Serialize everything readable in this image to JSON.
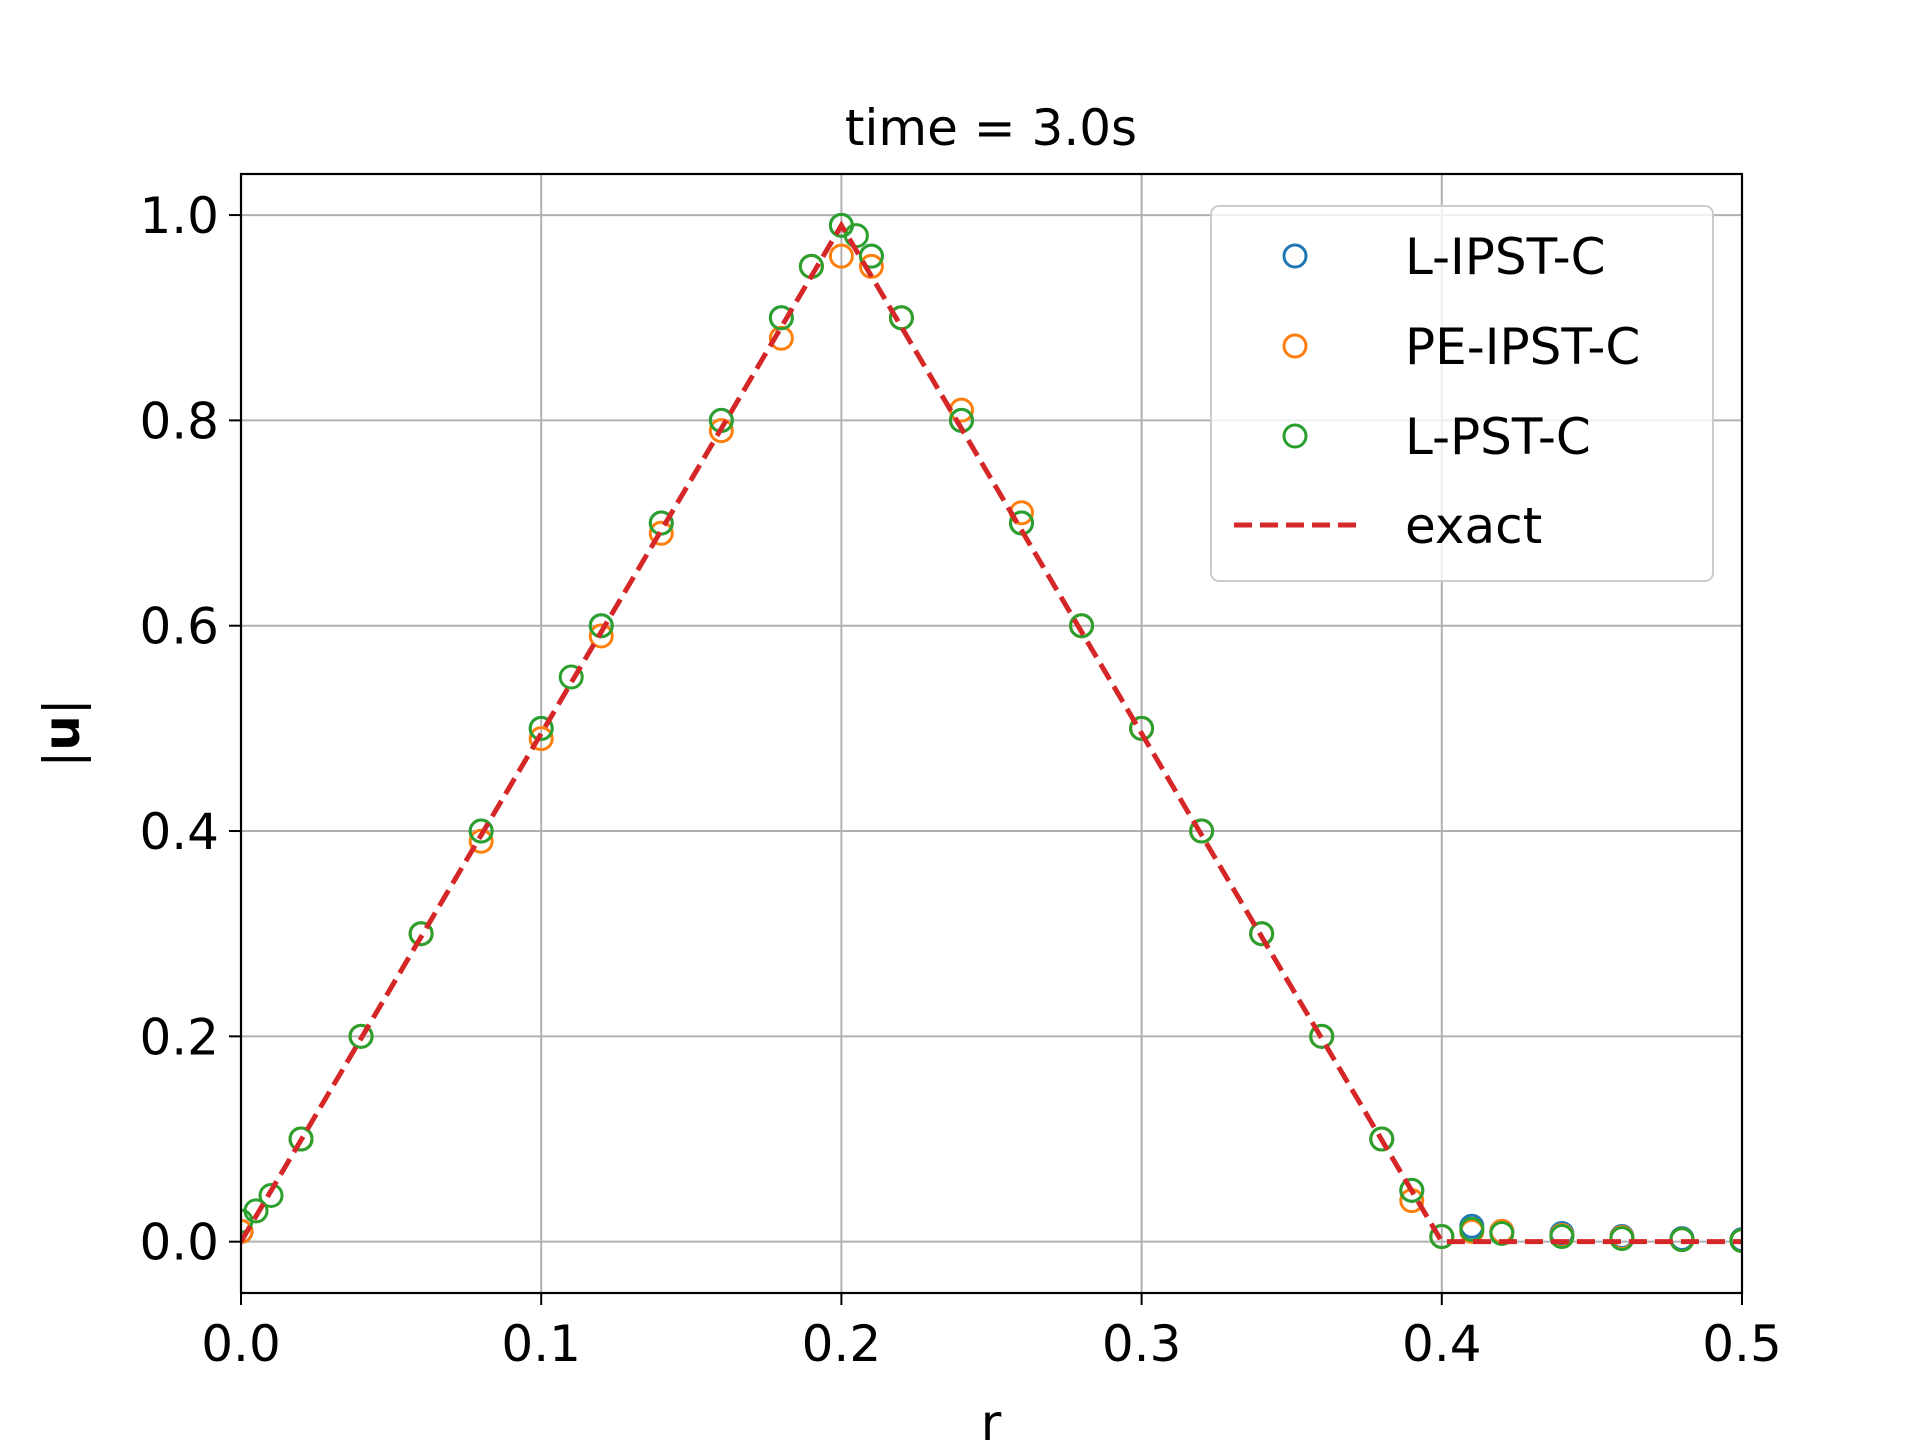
{
  "chart_data": {
    "type": "scatter",
    "title": "time = 3.0s",
    "xlabel": "r",
    "ylabel": "|u|",
    "ylabel_parts": {
      "left": "|",
      "bold": "u",
      "right": "|"
    },
    "xlim": [
      0.0,
      0.5
    ],
    "ylim": [
      -0.05,
      1.04
    ],
    "xticks": [
      0.0,
      0.1,
      0.2,
      0.3,
      0.4,
      0.5
    ],
    "xtick_labels": [
      "0.0",
      "0.1",
      "0.2",
      "0.3",
      "0.4",
      "0.5"
    ],
    "yticks": [
      0.0,
      0.2,
      0.4,
      0.6,
      0.8,
      1.0
    ],
    "ytick_labels": [
      "0.0",
      "0.2",
      "0.4",
      "0.6",
      "0.8",
      "1.0"
    ],
    "grid": true,
    "legend_position": "top-right",
    "series": [
      {
        "name": "L-IPST-C",
        "marker": "open-circle",
        "color": "#1f77b4",
        "x": [
          0.0,
          0.02,
          0.04,
          0.06,
          0.08,
          0.1,
          0.12,
          0.14,
          0.16,
          0.18,
          0.19,
          0.2,
          0.21,
          0.22,
          0.24,
          0.26,
          0.28,
          0.3,
          0.32,
          0.34,
          0.36,
          0.38,
          0.39,
          0.4,
          0.41,
          0.42,
          0.44,
          0.46,
          0.48,
          0.5
        ],
        "y": [
          0.01,
          0.1,
          0.2,
          0.3,
          0.4,
          0.5,
          0.6,
          0.7,
          0.8,
          0.9,
          0.95,
          0.99,
          0.96,
          0.9,
          0.8,
          0.7,
          0.6,
          0.5,
          0.4,
          0.3,
          0.2,
          0.1,
          0.05,
          0.005,
          0.015,
          0.01,
          0.008,
          0.005,
          0.003,
          0.002
        ]
      },
      {
        "name": "PE-IPST-C",
        "marker": "open-circle",
        "color": "#ff7f0e",
        "x": [
          0.0,
          0.02,
          0.04,
          0.06,
          0.08,
          0.1,
          0.12,
          0.14,
          0.16,
          0.18,
          0.19,
          0.2,
          0.21,
          0.22,
          0.24,
          0.26,
          0.28,
          0.3,
          0.32,
          0.34,
          0.36,
          0.38,
          0.39,
          0.4,
          0.41,
          0.42,
          0.44,
          0.46,
          0.48,
          0.5
        ],
        "y": [
          0.01,
          0.1,
          0.2,
          0.3,
          0.39,
          0.49,
          0.59,
          0.69,
          0.79,
          0.88,
          0.95,
          0.96,
          0.95,
          0.9,
          0.81,
          0.71,
          0.6,
          0.5,
          0.4,
          0.3,
          0.2,
          0.1,
          0.04,
          0.005,
          0.01,
          0.01,
          0.006,
          0.004,
          0.002,
          0.001
        ]
      },
      {
        "name": "L-PST-C",
        "marker": "open-circle",
        "color": "#2ca02c",
        "x": [
          0.0,
          0.005,
          0.01,
          0.02,
          0.04,
          0.06,
          0.08,
          0.1,
          0.11,
          0.12,
          0.14,
          0.16,
          0.18,
          0.19,
          0.2,
          0.205,
          0.21,
          0.22,
          0.24,
          0.26,
          0.28,
          0.3,
          0.32,
          0.34,
          0.36,
          0.38,
          0.39,
          0.4,
          0.41,
          0.42,
          0.44,
          0.46,
          0.48,
          0.5
        ],
        "y": [
          0.02,
          0.03,
          0.045,
          0.1,
          0.2,
          0.3,
          0.4,
          0.5,
          0.55,
          0.6,
          0.7,
          0.8,
          0.9,
          0.95,
          0.99,
          0.98,
          0.96,
          0.9,
          0.8,
          0.7,
          0.6,
          0.5,
          0.4,
          0.3,
          0.2,
          0.1,
          0.05,
          0.005,
          0.012,
          0.008,
          0.005,
          0.003,
          0.002,
          0.001
        ]
      },
      {
        "name": "exact",
        "marker": "dashed-line",
        "color": "#d62728",
        "x": [
          0.0,
          0.2,
          0.4,
          0.5
        ],
        "y": [
          0.0,
          0.99,
          0.0,
          0.0
        ]
      }
    ]
  }
}
